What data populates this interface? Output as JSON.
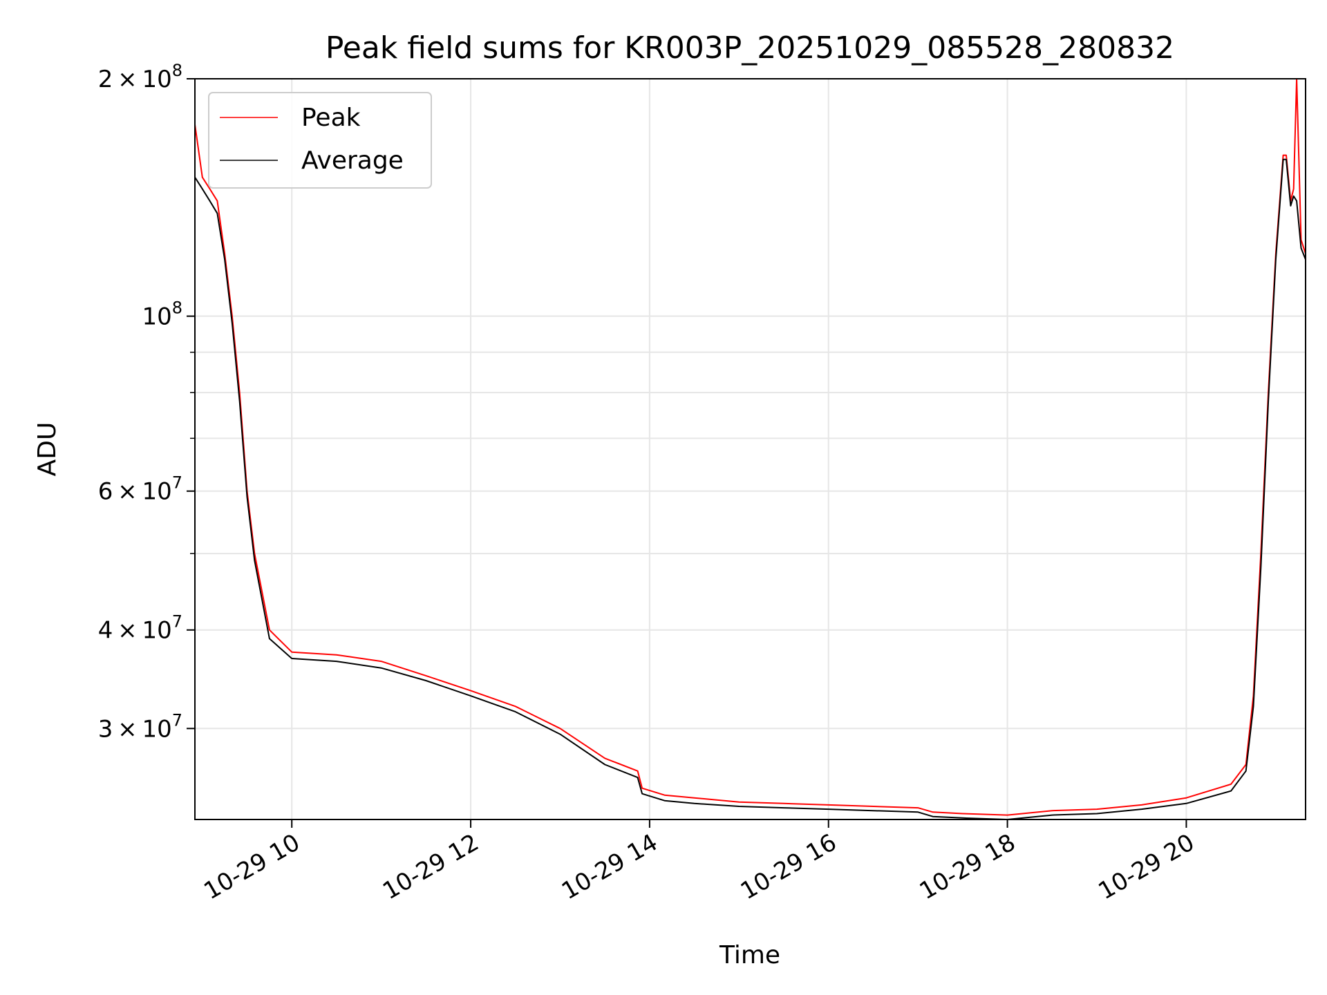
{
  "chart_data": {
    "type": "line",
    "title": "Peak field sums for KR003P_20251029_085528_280832",
    "xlabel": "Time",
    "ylabel": "ADU",
    "y_scale": "log",
    "xlim": [
      "2025-10-29 08:55",
      "2025-10-29 21:20"
    ],
    "ylim": [
      23000000,
      200000000
    ],
    "grid": true,
    "legend_position": "top-left",
    "x_ticks": [
      {
        "value": "2025-10-29 10:00",
        "label": "10-29 10"
      },
      {
        "value": "2025-10-29 12:00",
        "label": "10-29 12"
      },
      {
        "value": "2025-10-29 14:00",
        "label": "10-29 14"
      },
      {
        "value": "2025-10-29 16:00",
        "label": "10-29 16"
      },
      {
        "value": "2025-10-29 18:00",
        "label": "10-29 18"
      },
      {
        "value": "2025-10-29 20:00",
        "label": "10-29 20"
      }
    ],
    "y_ticks_major": [
      {
        "value": 200000000,
        "mantissa": "2",
        "exponent": "8"
      },
      {
        "value": 100000000,
        "mantissa": "",
        "exponent": "8"
      },
      {
        "value": 60000000,
        "mantissa": "6",
        "exponent": "7"
      },
      {
        "value": 40000000,
        "mantissa": "4",
        "exponent": "7"
      },
      {
        "value": 30000000,
        "mantissa": "3",
        "exponent": "7"
      }
    ],
    "y_ticks_minor": [
      90000000,
      80000000,
      70000000,
      50000000
    ],
    "series": [
      {
        "name": "Peak",
        "color": "#ff0000",
        "x": [
          "2025-10-29 08:55",
          "2025-10-29 09:00",
          "2025-10-29 09:05",
          "2025-10-29 09:10",
          "2025-10-29 09:15",
          "2025-10-29 09:20",
          "2025-10-29 09:25",
          "2025-10-29 09:30",
          "2025-10-29 09:35",
          "2025-10-29 09:45",
          "2025-10-29 10:00",
          "2025-10-29 10:30",
          "2025-10-29 11:00",
          "2025-10-29 11:30",
          "2025-10-29 12:00",
          "2025-10-29 12:30",
          "2025-10-29 13:00",
          "2025-10-29 13:30",
          "2025-10-29 13:52",
          "2025-10-29 13:55",
          "2025-10-29 14:10",
          "2025-10-29 14:30",
          "2025-10-29 15:00",
          "2025-10-29 15:30",
          "2025-10-29 16:00",
          "2025-10-29 16:30",
          "2025-10-29 17:00",
          "2025-10-29 17:10",
          "2025-10-29 17:30",
          "2025-10-29 18:00",
          "2025-10-29 18:30",
          "2025-10-29 19:00",
          "2025-10-29 19:30",
          "2025-10-29 20:00",
          "2025-10-29 20:30",
          "2025-10-29 20:40",
          "2025-10-29 20:45",
          "2025-10-29 20:50",
          "2025-10-29 20:55",
          "2025-10-29 21:00",
          "2025-10-29 21:05",
          "2025-10-29 21:07",
          "2025-10-29 21:10",
          "2025-10-29 21:12",
          "2025-10-29 21:14",
          "2025-10-29 21:17",
          "2025-10-29 21:20"
        ],
        "values": [
          175000000,
          150000000,
          145000000,
          140000000,
          120000000,
          100000000,
          80000000,
          60000000,
          50000000,
          40000000,
          37500000,
          37200000,
          36500000,
          35000000,
          33500000,
          32000000,
          30000000,
          27500000,
          26500000,
          25200000,
          24700000,
          24500000,
          24200000,
          24100000,
          24000000,
          23900000,
          23800000,
          23500000,
          23400000,
          23300000,
          23600000,
          23700000,
          24000000,
          24500000,
          25500000,
          27000000,
          33000000,
          50000000,
          80000000,
          120000000,
          160000000,
          160000000,
          140000000,
          145000000,
          200000000,
          125000000,
          120000000
        ]
      },
      {
        "name": "Average",
        "color": "#000000",
        "x": [
          "2025-10-29 08:55",
          "2025-10-29 09:00",
          "2025-10-29 09:05",
          "2025-10-29 09:10",
          "2025-10-29 09:15",
          "2025-10-29 09:20",
          "2025-10-29 09:25",
          "2025-10-29 09:30",
          "2025-10-29 09:35",
          "2025-10-29 09:45",
          "2025-10-29 10:00",
          "2025-10-29 10:30",
          "2025-10-29 11:00",
          "2025-10-29 11:30",
          "2025-10-29 12:00",
          "2025-10-29 12:30",
          "2025-10-29 13:00",
          "2025-10-29 13:30",
          "2025-10-29 13:52",
          "2025-10-29 13:55",
          "2025-10-29 14:10",
          "2025-10-29 14:30",
          "2025-10-29 15:00",
          "2025-10-29 15:30",
          "2025-10-29 16:00",
          "2025-10-29 16:30",
          "2025-10-29 17:00",
          "2025-10-29 17:10",
          "2025-10-29 17:30",
          "2025-10-29 18:00",
          "2025-10-29 18:30",
          "2025-10-29 19:00",
          "2025-10-29 19:30",
          "2025-10-29 20:00",
          "2025-10-29 20:30",
          "2025-10-29 20:40",
          "2025-10-29 20:45",
          "2025-10-29 20:50",
          "2025-10-29 20:55",
          "2025-10-29 21:00",
          "2025-10-29 21:05",
          "2025-10-29 21:07",
          "2025-10-29 21:10",
          "2025-10-29 21:12",
          "2025-10-29 21:14",
          "2025-10-29 21:17",
          "2025-10-29 21:20"
        ],
        "values": [
          150000000,
          145000000,
          140000000,
          135000000,
          118000000,
          98000000,
          78000000,
          59000000,
          49000000,
          39000000,
          36800000,
          36500000,
          35800000,
          34500000,
          33000000,
          31500000,
          29500000,
          27000000,
          26000000,
          24800000,
          24300000,
          24100000,
          23900000,
          23800000,
          23700000,
          23600000,
          23500000,
          23200000,
          23100000,
          23000000,
          23300000,
          23400000,
          23700000,
          24100000,
          25000000,
          26500000,
          32000000,
          48000000,
          78000000,
          118000000,
          158000000,
          158000000,
          138000000,
          142000000,
          140000000,
          122000000,
          118000000
        ]
      }
    ]
  }
}
